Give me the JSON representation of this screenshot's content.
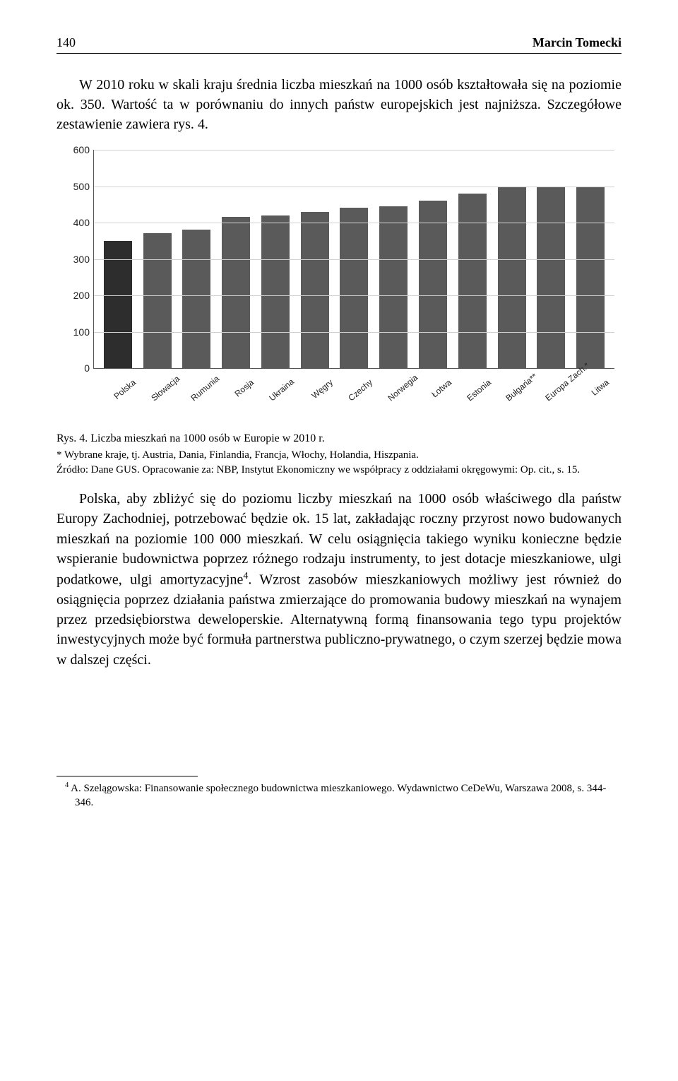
{
  "header": {
    "page": "140",
    "author": "Marcin Tomecki"
  },
  "intro": "W 2010 roku w skali kraju średnia liczba mieszkań na 1000 osób kształtowała się na poziomie ok. 350. Wartość ta w porównaniu do innych państw europejskich jest najniższa. Szczegółowe zestawienie zawiera rys. 4.",
  "chart": {
    "type": "bar",
    "ylim": [
      0,
      600
    ],
    "ytick_step": 100,
    "grid_color": "#d0d0d0",
    "bg": "#ffffff",
    "bar_color": "#5a5a5a",
    "first_bar_color": "#2d2d2d",
    "categories": [
      "Polska",
      "Słowacja",
      "Rumunia",
      "Rosja",
      "Ukraina",
      "Węgry",
      "Czechy",
      "Norwegia",
      "Łotwa",
      "Estonia",
      "Bułgaria**",
      "Europa Zach.*",
      "Litwa"
    ],
    "values": [
      350,
      370,
      380,
      415,
      420,
      430,
      440,
      445,
      460,
      480,
      500,
      500,
      500
    ]
  },
  "caption": "Rys. 4. Liczba mieszkań na 1000 osób w Europie w 2010 r.",
  "note": "* Wybrane kraje, tj. Austria, Dania, Finlandia, Francja, Włochy, Holandia, Hiszpania.",
  "source": "Źródło: Dane GUS. Opracowanie za: NBP, Instytut Ekonomiczny we współpracy z oddziałami okręgowymi: Op. cit., s. 15.",
  "body": "Polska, aby zbliżyć się do poziomu liczby mieszkań na 1000 osób właściwego dla państw Europy Zachodniej, potrzebować będzie ok. 15 lat, zakładając roczny przyrost nowo budowanych mieszkań na poziomie 100 000 mieszkań. W celu osiągnięcia takiego wyniku konieczne będzie wspieranie budownictwa poprzez różnego rodzaju instrumenty, to jest dotacje mieszkaniowe, ulgi podatkowe, ulgi amortyzacyjne4. Wzrost zasobów mieszkaniowych możliwy jest również do osiągnięcia poprzez działania państwa zmierzające do promowania budowy mieszkań na wynajem przez przedsiębiorstwa deweloperskie. Alternatywną formą finansowania tego typu projektów inwestycyjnych może być formuła partnerstwa publiczno-prywatnego, o czym szerzej będzie mowa w dalszej części.",
  "footnote": "4  A. Szelągowska: Finansowanie społecznego budownictwa mieszkaniowego. Wydawnictwo CeDeWu, Warszawa 2008, s. 344-346."
}
